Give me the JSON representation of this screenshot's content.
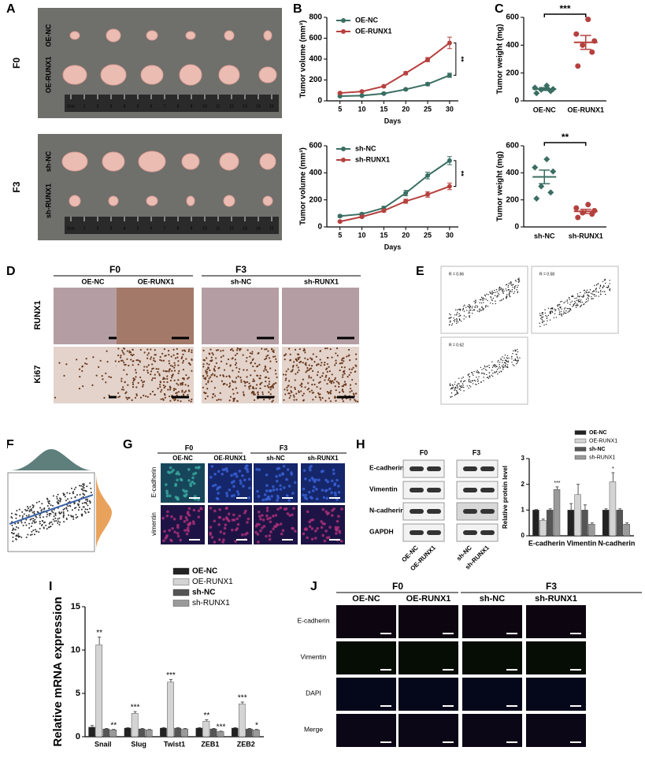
{
  "figure": {
    "panel_letters": [
      "A",
      "B",
      "C",
      "D",
      "E",
      "F",
      "G",
      "H",
      "I",
      "J"
    ],
    "a": {
      "groups": [
        "F0",
        "F3"
      ],
      "rows": [
        "OE-NC",
        "OE-RUNX1",
        "sh-NC",
        "sh-RUNX1"
      ],
      "ruler": [
        "0cm",
        "1",
        "2",
        "3",
        "4",
        "5",
        "6",
        "7",
        "8",
        "9",
        "10",
        "11",
        "12",
        "13",
        "14",
        "15"
      ]
    },
    "d": {
      "groups": [
        "F0",
        "F3"
      ],
      "columns": [
        "OE-NC",
        "OE-RUNX1",
        "sh-NC",
        "sh-RUNX1"
      ],
      "rows": [
        "RUNX1",
        "Ki67"
      ]
    },
    "e": {
      "stats": [
        "R = 0.66",
        "R = 0.58",
        "R = 0.62"
      ]
    },
    "g": {
      "groups": [
        "F0",
        "F3"
      ],
      "columns": [
        "OE-NC",
        "OE-RUNX1",
        "sh-NC",
        "sh-RUNX1"
      ],
      "rows": [
        "E-cadherin",
        "vimentin"
      ]
    },
    "h": {
      "groups": [
        "F0",
        "F3"
      ],
      "rows": [
        "E-cadherin",
        "Vimentin",
        "N-cadherin",
        "GAPDH"
      ],
      "columns": [
        "OE-NC",
        "OE-RUNX1",
        "sh-NC",
        "sh-RUNX1"
      ]
    },
    "j": {
      "groups": [
        "F0",
        "F3"
      ],
      "columns": [
        "OE-NC",
        "OE-RUNX1",
        "sh-NC",
        "sh-RUNX1"
      ],
      "rows": [
        "E-cadherin",
        "Vimentin",
        "DAPI",
        "Merge"
      ]
    }
  },
  "chart_data": [
    {
      "type": "line",
      "xlabel": "Days",
      "ylabel": "Tumor volume (mm³)",
      "x": [
        5,
        10,
        15,
        20,
        25,
        30
      ],
      "xlim": [
        2,
        32
      ],
      "xticks": [
        5,
        10,
        15,
        20,
        25,
        30
      ],
      "ylim": [
        0,
        800
      ],
      "yticks": [
        0,
        200,
        400,
        600,
        800
      ],
      "legend": "top-left",
      "annotation": "**",
      "series": [
        {
          "name": "OE-NC",
          "color": "#3a6e62",
          "values": [
            45,
            50,
            70,
            110,
            160,
            245
          ],
          "errors": [
            5,
            6,
            8,
            10,
            15,
            20
          ]
        },
        {
          "name": "OE-RUNX1",
          "color": "#b5413f",
          "values": [
            75,
            90,
            140,
            265,
            395,
            555
          ],
          "errors": [
            8,
            8,
            10,
            15,
            20,
            55
          ]
        }
      ]
    },
    {
      "type": "line",
      "xlabel": "Days",
      "ylabel": "Tumor volume (mm³)",
      "x": [
        5,
        10,
        15,
        20,
        25,
        30
      ],
      "xlim": [
        2,
        32
      ],
      "xticks": [
        5,
        10,
        15,
        20,
        25,
        30
      ],
      "ylim": [
        0,
        600
      ],
      "yticks": [
        0,
        200,
        400,
        600
      ],
      "legend": "top-left",
      "annotation": "**",
      "series": [
        {
          "name": "sh-NC",
          "color": "#3a6e62",
          "values": [
            80,
            95,
            140,
            250,
            380,
            490
          ],
          "errors": [
            8,
            10,
            12,
            20,
            25,
            30
          ]
        },
        {
          "name": "sh-RUNX1",
          "color": "#b5413f",
          "values": [
            40,
            75,
            120,
            190,
            240,
            300
          ],
          "errors": [
            5,
            8,
            10,
            15,
            20,
            25
          ]
        }
      ]
    },
    {
      "type": "dot",
      "ylabel": "Tumor weight (mg)",
      "categories": [
        "OE-NC",
        "OE-RUNX1"
      ],
      "colors": [
        "#3a6e62",
        "#b5413f"
      ],
      "values": [
        [
          55,
          70,
          80,
          85,
          95,
          110
        ],
        [
          250,
          350,
          400,
          430,
          480,
          585
        ]
      ],
      "means": [
        85,
        420
      ],
      "sems": [
        10,
        50
      ],
      "ylim": [
        0,
        600
      ],
      "yticks": [
        0,
        200,
        400,
        600
      ],
      "annotation": "***"
    },
    {
      "type": "dot",
      "ylabel": "Tumor weight (mg)",
      "categories": [
        "sh-NC",
        "sh-RUNX1"
      ],
      "colors": [
        "#3a6e62",
        "#b5413f"
      ],
      "values": [
        [
          210,
          255,
          300,
          410,
          440,
          500
        ],
        [
          70,
          95,
          105,
          120,
          140,
          165
        ]
      ],
      "means": [
        370,
        115
      ],
      "sems": [
        50,
        15
      ],
      "ylim": [
        0,
        600
      ],
      "yticks": [
        0,
        200,
        400,
        600
      ],
      "annotation": "**"
    },
    {
      "type": "bar",
      "ylabel": "Relative protein level",
      "categories": [
        "E-cadherin",
        "Vimentin",
        "N-cadherin"
      ],
      "ylim": [
        0,
        3
      ],
      "yticks": [
        0,
        1,
        2,
        3
      ],
      "legend": "top-right",
      "series": [
        {
          "name": "OE-NC",
          "color": "#222222",
          "values": [
            1,
            1,
            1
          ],
          "errors": [
            0.02,
            0.25,
            0.05
          ],
          "significance": [
            null,
            null,
            null
          ]
        },
        {
          "name": "OE-RUNX1",
          "color": "#d4d4d4",
          "values": [
            0.6,
            1.6,
            2.1
          ],
          "errors": [
            0.05,
            0.4,
            0.35
          ],
          "significance": [
            null,
            null,
            "*"
          ]
        },
        {
          "name": "sh-NC",
          "color": "#555555",
          "values": [
            1,
            1,
            1
          ],
          "errors": [
            0.05,
            0.2,
            0.05
          ],
          "significance": [
            null,
            null,
            null
          ]
        },
        {
          "name": "sh-RUNX1",
          "color": "#9a9a9a",
          "values": [
            1.8,
            0.45,
            0.45
          ],
          "errors": [
            0.1,
            0.05,
            0.05
          ],
          "significance": [
            "***",
            null,
            null
          ]
        }
      ]
    },
    {
      "type": "bar",
      "ylabel": "Relative mRNA expression",
      "categories": [
        "Snail",
        "Slug",
        "Twist1",
        "ZEB1",
        "ZEB2"
      ],
      "ylim": [
        0,
        15
      ],
      "yticks": [
        0,
        5,
        10,
        15
      ],
      "legend": "top-right",
      "series": [
        {
          "name": "OE-NC",
          "color": "#222222",
          "values": [
            1.1,
            1,
            1,
            1,
            1
          ],
          "errors": [
            0.2,
            0.05,
            0.05,
            0.05,
            0.05
          ],
          "significance": [
            null,
            null,
            null,
            null,
            null
          ]
        },
        {
          "name": "OE-RUNX1",
          "color": "#d4d4d4",
          "values": [
            10.6,
            2.7,
            6.3,
            1.8,
            3.8
          ],
          "errors": [
            0.9,
            0.2,
            0.3,
            0.15,
            0.2
          ],
          "significance": [
            "**",
            "***",
            "***",
            "**",
            "***"
          ]
        },
        {
          "name": "sh-NC",
          "color": "#555555",
          "values": [
            0.9,
            0.9,
            1,
            0.9,
            0.9
          ],
          "errors": [
            0.05,
            0.05,
            0.05,
            0.05,
            0.05
          ],
          "significance": [
            null,
            null,
            null,
            null,
            null
          ]
        },
        {
          "name": "sh-RUNX1",
          "color": "#9a9a9a",
          "values": [
            0.8,
            0.8,
            0.9,
            0.6,
            0.8
          ],
          "errors": [
            0.05,
            0.05,
            0.05,
            0.05,
            0.05
          ],
          "significance": [
            "**",
            null,
            null,
            "***",
            "*"
          ]
        }
      ]
    }
  ]
}
